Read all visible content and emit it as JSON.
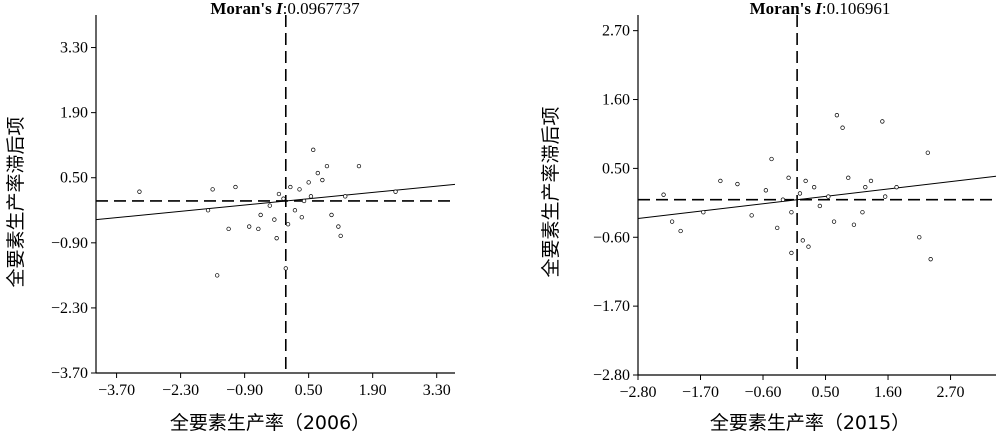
{
  "chart_data": [
    {
      "type": "scatter",
      "title_prefix": "Moran's ",
      "title_symbol": "I",
      "title_value": ":0.0967737",
      "xlabel": "全要素生产率（2006）",
      "ylabel": "全要素生产率滞后项",
      "xlim": [
        -4.15,
        3.7
      ],
      "ylim": [
        -3.7,
        4.0
      ],
      "xticks": [
        -3.7,
        -2.3,
        -0.9,
        0.5,
        1.9,
        3.3
      ],
      "xtick_labels": [
        "−3.70",
        "−2.30",
        "−0.90",
        "0.50",
        "1.90",
        "3.30"
      ],
      "yticks": [
        -3.7,
        -2.3,
        -0.9,
        0.5,
        1.9,
        3.3
      ],
      "ytick_labels": [
        "−3.70",
        "−2.30",
        "−0.90",
        "0.50",
        "1.90",
        "3.30"
      ],
      "crosshair": [
        0.0,
        0.0
      ],
      "fit_line": {
        "slope": 0.0967737,
        "intercept": 0.0
      },
      "points": [
        {
          "x": -3.2,
          "y": 0.2
        },
        {
          "x": -1.6,
          "y": 0.25
        },
        {
          "x": -1.1,
          "y": 0.3
        },
        {
          "x": -1.7,
          "y": -0.2
        },
        {
          "x": -1.25,
          "y": -0.6
        },
        {
          "x": -0.8,
          "y": -0.55
        },
        {
          "x": -0.55,
          "y": -0.3
        },
        {
          "x": -0.35,
          "y": -0.1
        },
        {
          "x": -0.15,
          "y": 0.15
        },
        {
          "x": 0.1,
          "y": 0.3
        },
        {
          "x": 0.3,
          "y": 0.25
        },
        {
          "x": 0.5,
          "y": 0.4
        },
        {
          "x": 0.7,
          "y": 0.6
        },
        {
          "x": 0.9,
          "y": 0.75
        },
        {
          "x": 0.6,
          "y": 1.1
        },
        {
          "x": 0.4,
          "y": 0.0
        },
        {
          "x": 0.2,
          "y": -0.2
        },
        {
          "x": 0.35,
          "y": -0.35
        },
        {
          "x": 0.05,
          "y": -0.5
        },
        {
          "x": -0.25,
          "y": -0.4
        },
        {
          "x": -0.6,
          "y": -0.6
        },
        {
          "x": 1.0,
          "y": -0.3
        },
        {
          "x": 1.15,
          "y": -0.55
        },
        {
          "x": 1.2,
          "y": -0.75
        },
        {
          "x": 1.6,
          "y": 0.75
        },
        {
          "x": 2.4,
          "y": 0.2
        },
        {
          "x": -1.5,
          "y": -1.6
        },
        {
          "x": 0.0,
          "y": -1.45
        },
        {
          "x": -0.2,
          "y": -0.8
        },
        {
          "x": 0.55,
          "y": 0.1
        },
        {
          "x": 0.8,
          "y": 0.45
        },
        {
          "x": 1.3,
          "y": 0.1
        },
        {
          "x": -0.05,
          "y": 0.05
        }
      ]
    },
    {
      "type": "scatter",
      "title_prefix": "Moran's ",
      "title_symbol": "I",
      "title_value": ":0.106961",
      "xlabel": "全要素生产率（2015）",
      "ylabel": "全要素生产率滞后项",
      "xlim": [
        -2.8,
        3.5
      ],
      "ylim": [
        -2.8,
        2.95
      ],
      "xticks": [
        -2.8,
        -1.7,
        -0.6,
        0.5,
        1.6,
        2.7
      ],
      "xtick_labels": [
        "−2.80",
        "−1.70",
        "−0.60",
        "0.50",
        "1.60",
        "2.70"
      ],
      "yticks": [
        -2.8,
        -1.7,
        -0.6,
        0.5,
        1.6,
        2.7
      ],
      "ytick_labels": [
        "−2.80",
        "−1.70",
        "−0.60",
        "0.50",
        "1.60",
        "2.70"
      ],
      "crosshair": [
        0.0,
        0.0
      ],
      "fit_line": {
        "slope": 0.106961,
        "intercept": 0.0
      },
      "points": [
        {
          "x": -2.35,
          "y": 0.08
        },
        {
          "x": -2.2,
          "y": -0.35
        },
        {
          "x": -2.05,
          "y": -0.5
        },
        {
          "x": -1.65,
          "y": -0.2
        },
        {
          "x": -1.35,
          "y": 0.3
        },
        {
          "x": -1.05,
          "y": 0.25
        },
        {
          "x": -0.8,
          "y": -0.25
        },
        {
          "x": -0.55,
          "y": 0.15
        },
        {
          "x": -0.45,
          "y": 0.65
        },
        {
          "x": -0.35,
          "y": -0.45
        },
        {
          "x": -0.25,
          "y": 0.0
        },
        {
          "x": -0.15,
          "y": 0.35
        },
        {
          "x": -0.1,
          "y": -0.2
        },
        {
          "x": 0.05,
          "y": 0.1
        },
        {
          "x": 0.15,
          "y": 0.3
        },
        {
          "x": 0.3,
          "y": 0.2
        },
        {
          "x": 0.4,
          "y": -0.1
        },
        {
          "x": 0.55,
          "y": 0.05
        },
        {
          "x": 0.65,
          "y": -0.35
        },
        {
          "x": 0.7,
          "y": 1.35
        },
        {
          "x": 0.8,
          "y": 1.15
        },
        {
          "x": 0.9,
          "y": 0.35
        },
        {
          "x": 1.0,
          "y": -0.4
        },
        {
          "x": 1.2,
          "y": 0.2
        },
        {
          "x": 1.3,
          "y": 0.3
        },
        {
          "x": 1.5,
          "y": 1.25
        },
        {
          "x": 1.55,
          "y": 0.05
        },
        {
          "x": 2.15,
          "y": -0.6
        },
        {
          "x": 2.3,
          "y": 0.75
        },
        {
          "x": 2.35,
          "y": -0.95
        },
        {
          "x": 0.1,
          "y": -0.65
        },
        {
          "x": 0.2,
          "y": -0.75
        },
        {
          "x": -0.1,
          "y": -0.85
        },
        {
          "x": 1.15,
          "y": -0.2
        },
        {
          "x": 1.75,
          "y": 0.2
        }
      ]
    }
  ]
}
